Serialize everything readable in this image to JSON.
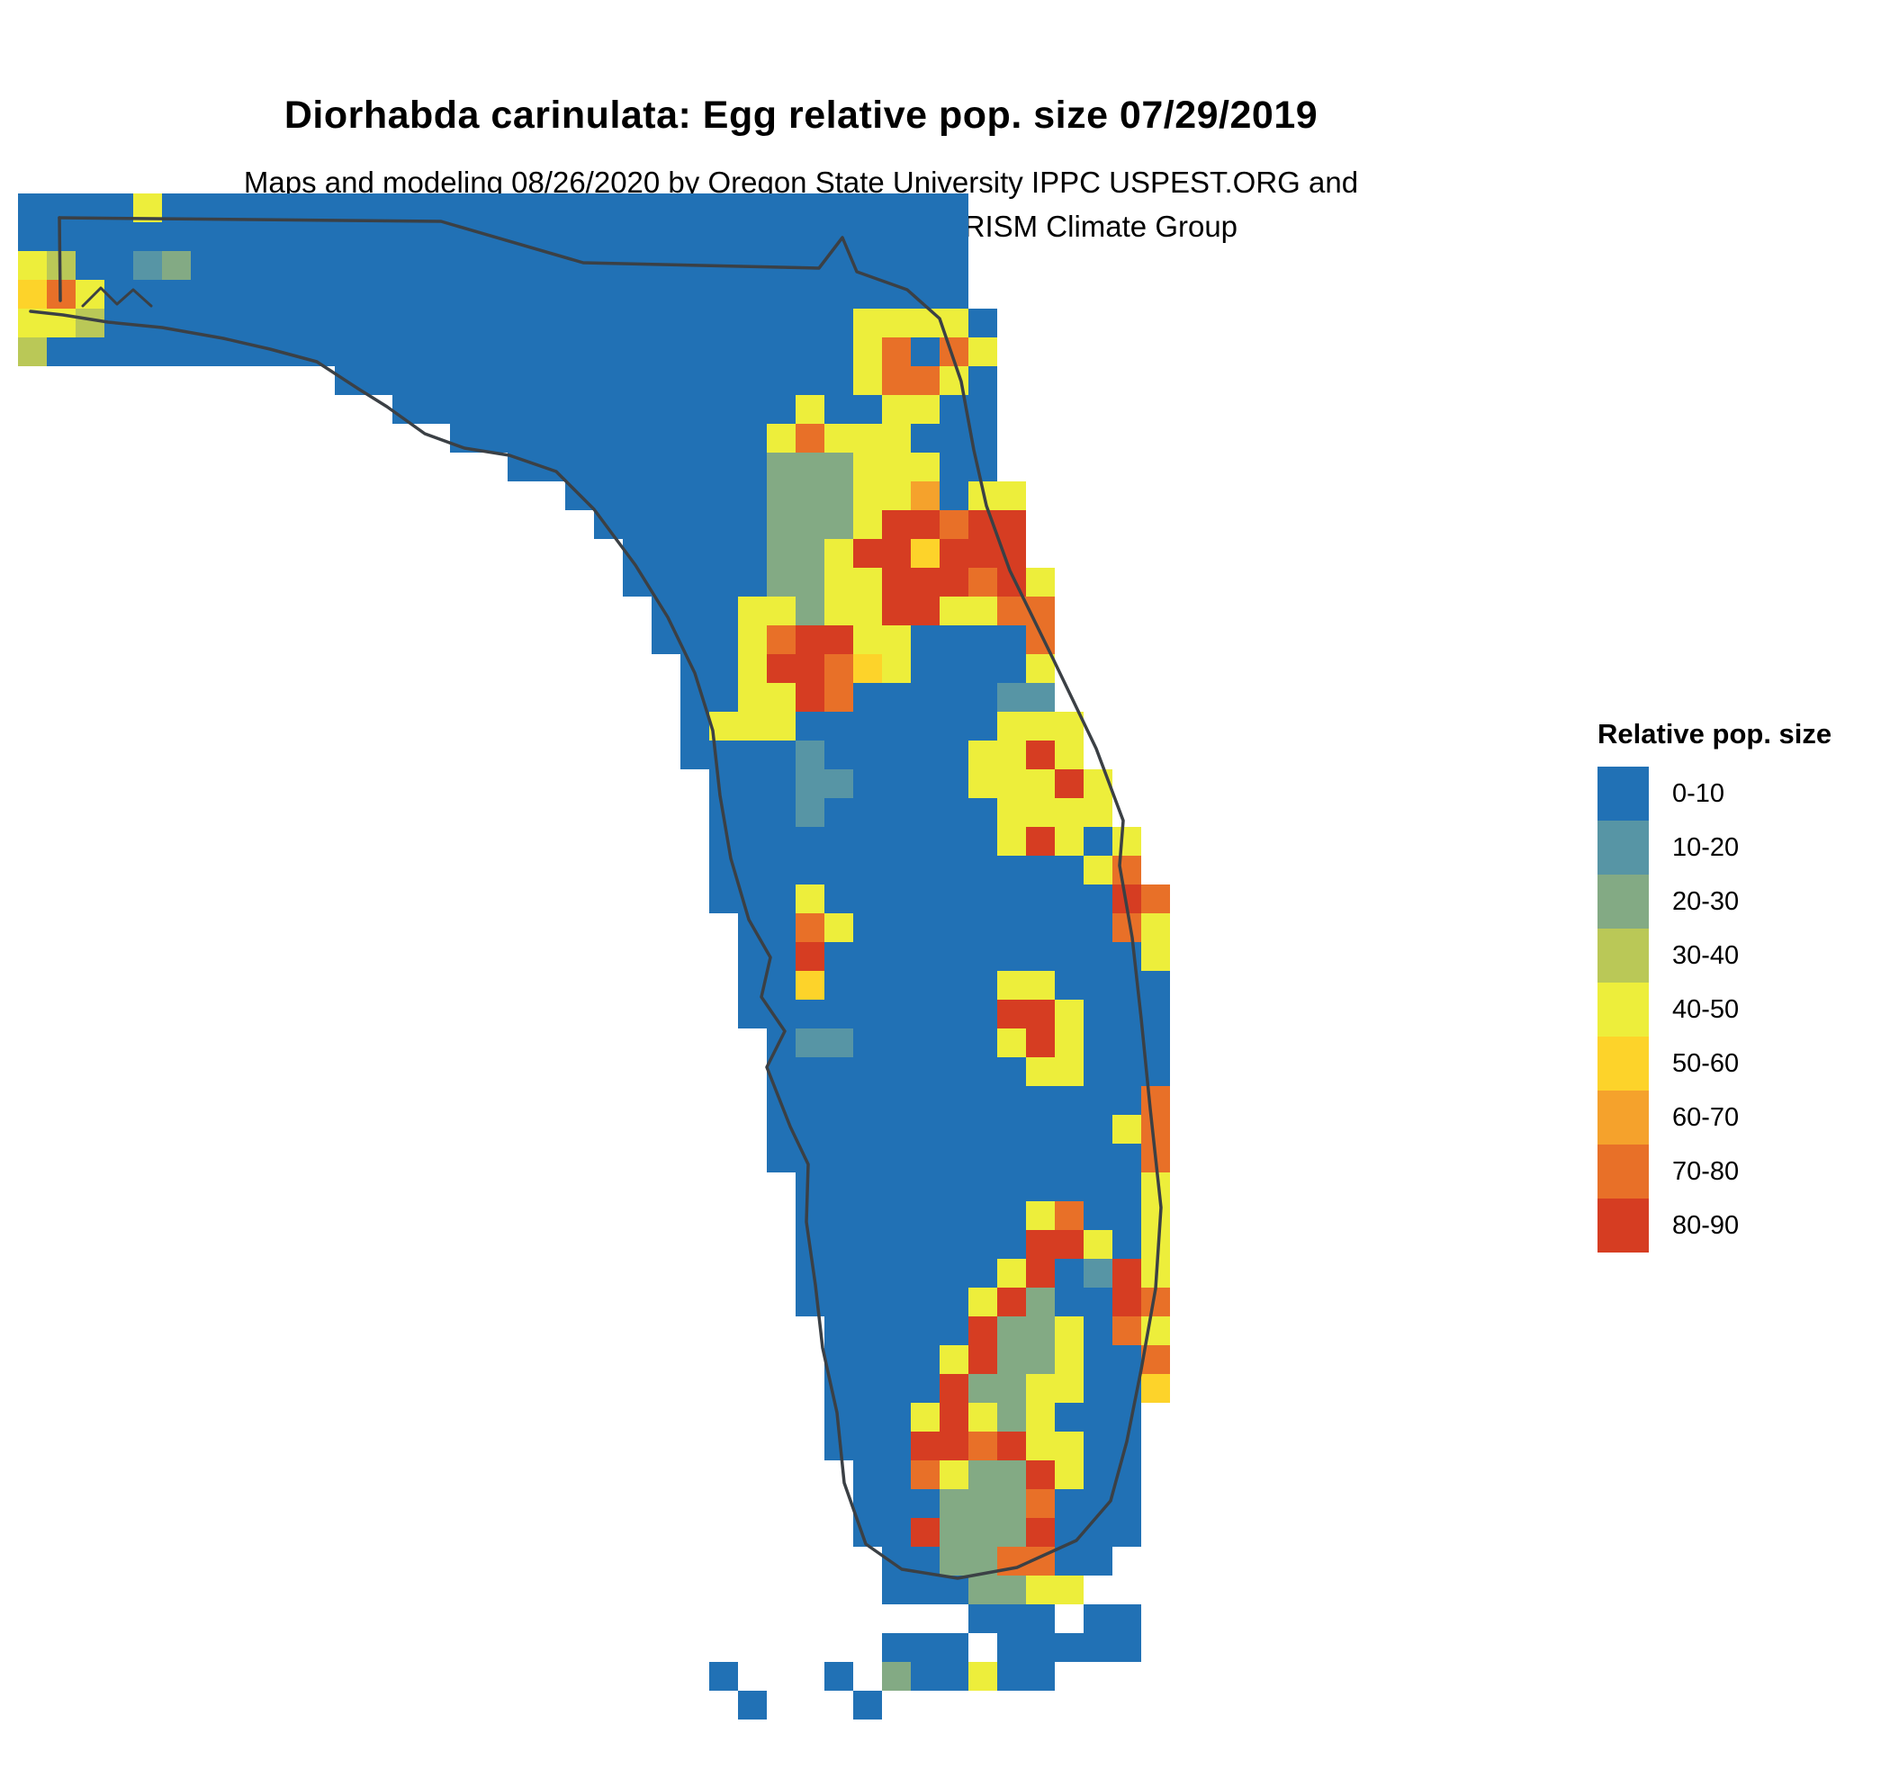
{
  "title": "Diorhabda carinulata: Egg relative pop. size 07/29/2019",
  "subtitle_line1": "Maps and modeling 08/26/2020 by Oregon State University IPPC USPEST.ORG and",
  "subtitle_line2": "USDA-APHIS-PPQ; climate data from OSU PRISM Climate Group",
  "legend": {
    "title": "Relative pop. size",
    "items": [
      {
        "label": "0-10",
        "color": "#2171b5"
      },
      {
        "label": "10-20",
        "color": "#5795a5"
      },
      {
        "label": "20-30",
        "color": "#83aa84"
      },
      {
        "label": "30-40",
        "color": "#bac857"
      },
      {
        "label": "40-50",
        "color": "#edee3b"
      },
      {
        "label": "50-60",
        "color": "#fdd32a"
      },
      {
        "label": "60-70",
        "color": "#f5a22c"
      },
      {
        "label": "70-80",
        "color": "#e87028"
      },
      {
        "label": "80-90",
        "color": "#d63d22"
      }
    ]
  },
  "map": {
    "cell_size": 32,
    "palette": {
      "b": "#2171b5",
      "t": "#5795a5",
      "g": "#83aa84",
      "l": "#bac857",
      "y": "#edee3b",
      "Y": "#fdd32a",
      "o": "#f5a22c",
      "O": "#e87028",
      "r": "#d63d22"
    },
    "grid_rows": [
      "bbbbybbbbbbbbbbbbbbbbbbbbbbbbbbbb.......",
      "bbbbbbbbbbbbbbbbbbbbbbbbbbbbbbbbb.......",
      "ylbbtgbbbbbbbbbbbbbbbbbbbbbbbbbbb.......",
      "YOybbbbbbbbbbbbbbbbbbbbbbbbbbbbbb.......",
      "yylbbbbbbbbbbbbbbbbbbbbbbbbbbyyyyb......",
      "lbbbbbbbbbbbbbbbbbbbbbbbbbbbbyObOy......",
      "...........bbbbbbbbbbbbbbbbbbyOOyb......",
      ".............bbbbbbbbbbbbbbybbyybb......",
      "...............bbbbbbbbbbbyOyyybbb......",
      ".................bbbbbbbbbgggyyybb......",
      "...................bbbbbbbgggyyobyy.....",
      "....................bbbbbbgggyrrOrr.....",
      ".....................bbbbbggyrrYrrr.....",
      ".....................bbbbbggyyrrrOry....",
      "......................bbbyygyyrryyOO....",
      "......................bbbyOrryybbbbO....",
      ".......................bbyrrOYybbbby....",
      ".......................bbyyrObbbbbtt....",
      ".......................byyybbbbbbbyyy...",
      ".......................bbbbtbbbbbyyry...",
      "........................bbbttbbbbyyyry..",
      "........................bbbtbbbbbbyyyy..",
      "........................bbbbbbbbbbyryby.",
      "........................bbbbbbbbbbbbbyO.",
      "........................bbbybbbbbbbbbbrO",
      ".........................bbOybbbbbbbbbOy",
      ".........................bbrbbbbbbbbbbby",
      ".........................bbYbbbbbbyybbbb",
      ".........................bbbbbbbbbrrybbb",
      "..........................bttbbbbbyrybbb",
      "..........................bbbbbbbbbyybbb",
      "..........................bbbbbbbbbbbbbO",
      "..........................bbbbbbbbbbbbyO",
      "..........................bbbbbbbbbbbbbO",
      "...........................bbbbbbbbbbbby",
      "...........................bbbbbbbbyObby",
      "...........................bbbbbbbbrryby",
      "...........................bbbbbbbyrbtry",
      "...........................bbbbbbyrgbbrO",
      "............................bbbbbrggybOy",
      "............................bbbbyrggybbO",
      "............................bbbbrggyybbY",
      "............................bbbyrygybbb.",
      "............................bbbrrOryybb.",
      ".............................bbOyggrybb.",
      ".............................bbbgggObbb.",
      ".............................bbrgggrbbb.",
      "..............................bbggOObb..",
      "..............................bbbggyy...",
      ".................................bbb.bb.",
      "..............................bbb.bbbbb.",
      "........................b...b.gbbybb....",
      ".........................b...b.........."
    ]
  }
}
